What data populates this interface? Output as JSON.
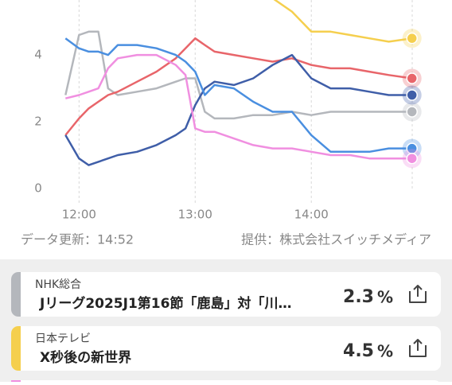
{
  "chart_data": {
    "type": "line",
    "x": [
      713,
      720,
      725,
      730,
      735,
      740,
      750,
      760,
      770,
      775,
      780,
      785,
      790,
      800,
      810,
      820,
      830,
      840,
      850,
      860,
      870,
      880,
      892
    ],
    "xlim": [
      710,
      895
    ],
    "xticks": [
      {
        "value": 720,
        "label": "12:00"
      },
      {
        "value": 780,
        "label": "13:00"
      },
      {
        "value": 840,
        "label": "14:00"
      }
    ],
    "ylim": [
      0,
      5.6
    ],
    "yticks": [
      0,
      2,
      4
    ],
    "series": [
      {
        "name": "NHK総合",
        "color": "#b4b7bc",
        "values": [
          2.8,
          4.6,
          4.7,
          4.7,
          3.0,
          2.8,
          2.9,
          3.0,
          3.2,
          3.3,
          3.3,
          2.3,
          2.1,
          2.1,
          2.2,
          2.2,
          2.3,
          2.2,
          2.3,
          2.3,
          2.3,
          2.3,
          2.3
        ]
      },
      {
        "name": "日本テレビ",
        "color": "#f5cf4e",
        "values": [
          null,
          null,
          null,
          null,
          null,
          null,
          null,
          null,
          null,
          null,
          null,
          null,
          null,
          null,
          null,
          5.7,
          5.3,
          4.7,
          4.7,
          4.6,
          4.5,
          4.4,
          4.5
        ]
      },
      {
        "color": "#e8656a",
        "values": [
          1.6,
          2.1,
          2.4,
          2.6,
          2.8,
          2.9,
          3.2,
          3.5,
          3.9,
          4.2,
          4.5,
          4.3,
          4.1,
          4.0,
          3.9,
          3.8,
          3.9,
          3.7,
          3.6,
          3.6,
          3.5,
          3.4,
          3.3
        ]
      },
      {
        "color": "#3f5ea8",
        "values": [
          1.6,
          0.9,
          0.7,
          0.8,
          0.9,
          1.0,
          1.1,
          1.3,
          1.6,
          1.8,
          2.5,
          3.0,
          3.2,
          3.1,
          3.3,
          3.7,
          4.0,
          3.3,
          3.0,
          3.0,
          2.9,
          2.8,
          2.8
        ]
      },
      {
        "color": "#4a8fe0",
        "values": [
          4.5,
          4.2,
          4.1,
          4.1,
          4.0,
          4.3,
          4.3,
          4.2,
          4.0,
          3.8,
          3.5,
          2.8,
          3.1,
          3.0,
          2.6,
          2.3,
          2.3,
          1.6,
          1.1,
          1.1,
          1.1,
          1.2,
          1.2
        ]
      },
      {
        "color": "#f08fe0",
        "values": [
          2.7,
          2.8,
          2.9,
          3.0,
          3.6,
          3.9,
          4.0,
          4.0,
          3.7,
          3.4,
          1.8,
          1.7,
          1.7,
          1.5,
          1.3,
          1.2,
          1.2,
          1.1,
          1.0,
          1.0,
          0.9,
          0.9,
          0.9
        ]
      }
    ]
  },
  "update": "データ更新：14:52",
  "provider": "提供：株式会社スイッチメディア",
  "programs": [
    {
      "channel": "NHK総合",
      "title": "Jリーグ2025J1第16節「鹿島」対「川…",
      "rating": 2.3,
      "unit": "%"
    },
    {
      "channel": "日本テレビ",
      "title": "X秒後の新世界",
      "rating": 4.5,
      "unit": "%"
    }
  ]
}
